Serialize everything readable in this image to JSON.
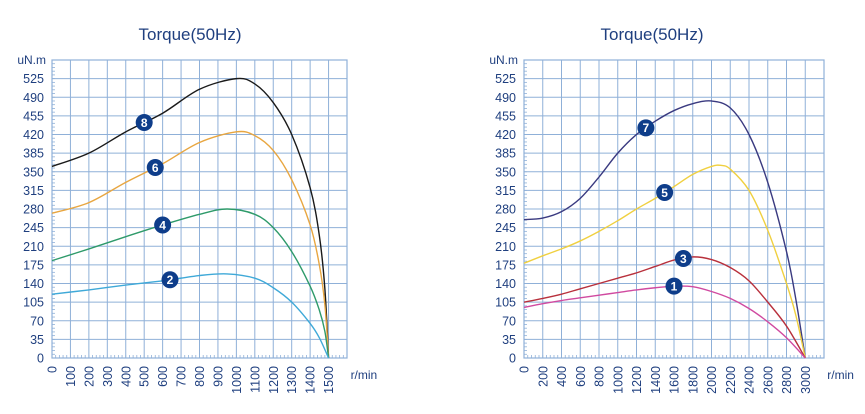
{
  "chart_data": [
    {
      "type": "line",
      "title": "Torque(50Hz)",
      "ylabel": "uN.m",
      "xlabel": "r/min",
      "xlim": [
        0,
        1600
      ],
      "ylim": [
        0,
        560
      ],
      "xticks": [
        0,
        100,
        200,
        300,
        400,
        500,
        600,
        700,
        800,
        900,
        1000,
        1100,
        1200,
        1300,
        1400,
        1500
      ],
      "xtick_labels": [
        "0",
        "100",
        "200",
        "300",
        "400",
        "500",
        "600",
        "700",
        "800",
        "900",
        "1000",
        "1100",
        "1200",
        "1300",
        "1400",
        "1500"
      ],
      "yticks": [
        0,
        35,
        70,
        105,
        140,
        175,
        210,
        245,
        280,
        315,
        350,
        385,
        420,
        455,
        490,
        525
      ],
      "ytick_labels": [
        "0",
        "35",
        "70",
        "105",
        "140",
        "175",
        "210",
        "245",
        "280",
        "315",
        "350",
        "385",
        "420",
        "455",
        "490",
        "525"
      ],
      "grid": true,
      "series": [
        {
          "name": "8",
          "color": "#1a1a1a",
          "label_at": 500,
          "x": [
            0,
            200,
            400,
            600,
            800,
            1000,
            1100,
            1200,
            1300,
            1400,
            1450,
            1480,
            1500
          ],
          "y": [
            360,
            385,
            425,
            460,
            505,
            525,
            515,
            480,
            420,
            320,
            230,
            130,
            0
          ]
        },
        {
          "name": "6",
          "color": "#e8a640",
          "label_at": 560,
          "x": [
            0,
            200,
            400,
            600,
            800,
            1000,
            1100,
            1200,
            1300,
            1400,
            1450,
            1480,
            1500
          ],
          "y": [
            272,
            292,
            330,
            365,
            405,
            425,
            418,
            390,
            335,
            250,
            175,
            100,
            0
          ]
        },
        {
          "name": "4",
          "color": "#2e9a6a",
          "label_at": 600,
          "x": [
            0,
            200,
            400,
            600,
            800,
            950,
            1100,
            1200,
            1300,
            1400,
            1450,
            1480,
            1500
          ],
          "y": [
            183,
            205,
            228,
            250,
            270,
            280,
            270,
            245,
            200,
            135,
            90,
            50,
            0
          ]
        },
        {
          "name": "2",
          "color": "#3fa9d8",
          "label_at": 640,
          "x": [
            0,
            200,
            400,
            600,
            800,
            950,
            1100,
            1200,
            1300,
            1400,
            1450,
            1500
          ],
          "y": [
            120,
            128,
            137,
            145,
            155,
            158,
            150,
            132,
            105,
            65,
            38,
            0
          ]
        }
      ]
    },
    {
      "type": "line",
      "title": "Torque(50Hz)",
      "ylabel": "uN.m",
      "xlabel": "r/min",
      "xlim": [
        0,
        3200
      ],
      "ylim": [
        0,
        560
      ],
      "xticks": [
        0,
        200,
        400,
        600,
        800,
        1000,
        1200,
        1400,
        1600,
        1800,
        2000,
        2200,
        2400,
        2600,
        2800,
        3000
      ],
      "xtick_labels": [
        "0",
        "200",
        "400",
        "600",
        "800",
        "1000",
        "1200",
        "1400",
        "1600",
        "1800",
        "2000",
        "2200",
        "2400",
        "2600",
        "2800",
        "3000"
      ],
      "yticks": [
        0,
        35,
        70,
        105,
        140,
        175,
        210,
        245,
        280,
        315,
        350,
        385,
        420,
        455,
        490,
        525
      ],
      "ytick_labels": [
        "0",
        "35",
        "70",
        "105",
        "140",
        "175",
        "210",
        "245",
        "280",
        "315",
        "350",
        "385",
        "420",
        "455",
        "490",
        "525"
      ],
      "grid": true,
      "series": [
        {
          "name": "7",
          "color": "#3a3a80",
          "label_at": 1300,
          "x": [
            0,
            200,
            400,
            600,
            800,
            1000,
            1200,
            1400,
            1600,
            1800,
            2000,
            2200,
            2400,
            2600,
            2800,
            2900,
            3000
          ],
          "y": [
            260,
            263,
            275,
            300,
            340,
            385,
            420,
            445,
            465,
            478,
            483,
            470,
            420,
            330,
            200,
            110,
            0
          ]
        },
        {
          "name": "5",
          "color": "#f0d040",
          "label_at": 1500,
          "x": [
            0,
            200,
            400,
            600,
            800,
            1000,
            1200,
            1400,
            1600,
            1800,
            2000,
            2100,
            2200,
            2400,
            2600,
            2800,
            2900,
            3000
          ],
          "y": [
            178,
            192,
            205,
            220,
            238,
            258,
            280,
            300,
            322,
            345,
            360,
            362,
            355,
            315,
            240,
            140,
            80,
            0
          ]
        },
        {
          "name": "3",
          "color": "#b8303c",
          "label_at": 1700,
          "x": [
            0,
            200,
            400,
            600,
            800,
            1000,
            1200,
            1400,
            1600,
            1800,
            2000,
            2200,
            2400,
            2600,
            2800,
            3000
          ],
          "y": [
            105,
            112,
            120,
            130,
            140,
            150,
            160,
            172,
            184,
            190,
            185,
            170,
            145,
            105,
            60,
            0
          ]
        },
        {
          "name": "1",
          "color": "#d04aa0",
          "label_at": 1600,
          "x": [
            0,
            200,
            400,
            600,
            800,
            1000,
            1200,
            1400,
            1600,
            1800,
            2000,
            2200,
            2400,
            2600,
            2800,
            3000
          ],
          "y": [
            95,
            102,
            108,
            113,
            118,
            123,
            128,
            132,
            135,
            134,
            125,
            112,
            93,
            68,
            38,
            0
          ]
        }
      ]
    }
  ]
}
